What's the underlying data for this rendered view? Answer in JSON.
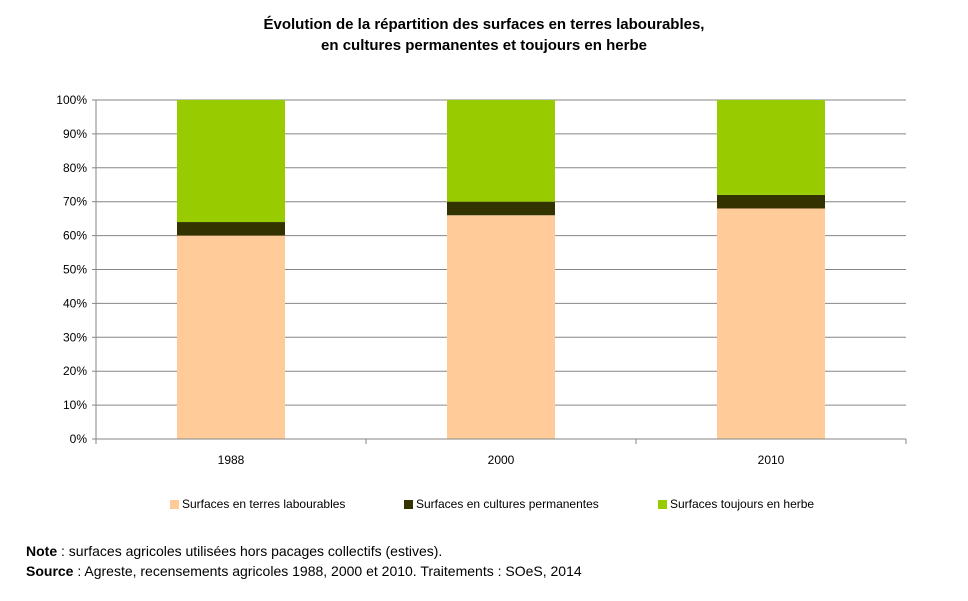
{
  "title_line1": "Évolution de la répartition des surfaces en terres labourables,",
  "title_line2": "en cultures permanentes et toujours en herbe",
  "chart_data": {
    "type": "bar",
    "stacked": true,
    "categories": [
      "1988",
      "2000",
      "2010"
    ],
    "series": [
      {
        "name": "Surfaces en terres labourables",
        "values": [
          60,
          66,
          68
        ],
        "color": "#FFCC99"
      },
      {
        "name": "Surfaces en cultures permanentes",
        "values": [
          4,
          4,
          4
        ],
        "color": "#333300"
      },
      {
        "name": "Surfaces toujours en herbe",
        "values": [
          36,
          30,
          28
        ],
        "color": "#99CC00"
      }
    ],
    "ylim": [
      0,
      100
    ],
    "yticks": [
      "0%",
      "10%",
      "20%",
      "30%",
      "40%",
      "50%",
      "60%",
      "70%",
      "80%",
      "90%",
      "100%"
    ],
    "grid": true,
    "legend_position": "bottom"
  },
  "note_label": "Note",
  "note_text": " : surfaces agricoles utilisées hors pacages collectifs (estives).",
  "source_label": "Source",
  "source_text": " : Agreste, recensements agricoles 1988, 2000 et 2010. Traitements : SOeS, 2014"
}
